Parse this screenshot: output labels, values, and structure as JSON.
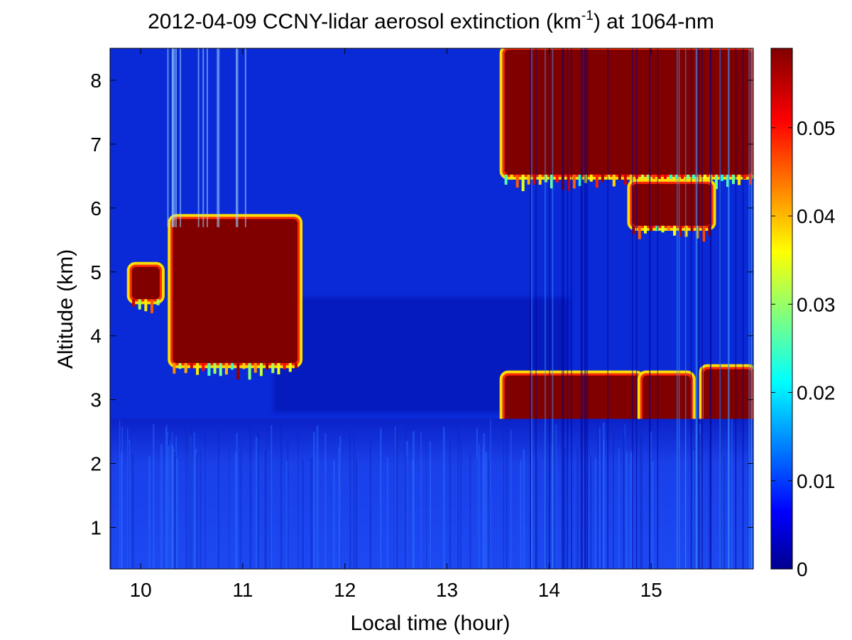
{
  "chart_data": {
    "type": "heatmap",
    "title_main": "2012-04-09 CCNY-lidar aerosol extinction (km",
    "title_sup": "-1",
    "title_end": ") at 1064-nm",
    "xlabel": "Local time (hour)",
    "ylabel": "Altitude (km)",
    "xlim": [
      9.7,
      16.0
    ],
    "ylim": [
      0.35,
      8.5
    ],
    "xticks": [
      10,
      11,
      12,
      13,
      14,
      15
    ],
    "xtick_labels": [
      "10",
      "11",
      "12",
      "13",
      "14",
      "15"
    ],
    "yticks": [
      1,
      2,
      3,
      4,
      5,
      6,
      7,
      8
    ],
    "ytick_labels": [
      "1",
      "2",
      "3",
      "4",
      "5",
      "6",
      "7",
      "8"
    ],
    "colorbar": {
      "clim": [
        0,
        0.059
      ],
      "ticks": [
        0,
        0.01,
        0.02,
        0.03,
        0.04,
        0.05
      ],
      "tick_labels": [
        "0",
        "0.01",
        "0.02",
        "0.03",
        "0.04",
        "0.05"
      ],
      "colormap": "jet"
    },
    "colors": {
      "background_field": "#0a2ad8",
      "boundary_layer": "#1a46f0",
      "low_value": "#00008f",
      "saturated": "#800000",
      "cloud_edge": "#ffdd00"
    },
    "features": [
      {
        "label": "cloud",
        "time_range": [
          10.3,
          11.55
        ],
        "altitude_range": [
          3.55,
          5.85
        ],
        "extinction": 0.059
      },
      {
        "label": "cloud",
        "time_range": [
          9.9,
          10.2
        ],
        "altitude_range": [
          4.55,
          5.1
        ],
        "extinction": 0.059
      },
      {
        "label": "cloud",
        "time_range": [
          13.55,
          16.0
        ],
        "altitude_range": [
          6.5,
          8.5
        ],
        "extinction": 0.059
      },
      {
        "label": "cloud",
        "time_range": [
          14.8,
          15.6
        ],
        "altitude_range": [
          5.7,
          6.4
        ],
        "extinction": 0.059
      },
      {
        "label": "cloud",
        "time_range": [
          13.55,
          14.9
        ],
        "altitude_range": [
          2.4,
          3.4
        ],
        "extinction": 0.059
      },
      {
        "label": "cloud",
        "time_range": [
          14.9,
          15.4
        ],
        "altitude_range": [
          2.6,
          3.4
        ],
        "extinction": 0.059
      },
      {
        "label": "cloud",
        "time_range": [
          15.5,
          16.0
        ],
        "altitude_range": [
          2.3,
          3.5
        ],
        "extinction": 0.059
      },
      {
        "label": "boundary layer",
        "time_range": [
          9.7,
          16.0
        ],
        "altitude_range": [
          0.35,
          2.7
        ],
        "extinction": 0.012
      }
    ]
  }
}
